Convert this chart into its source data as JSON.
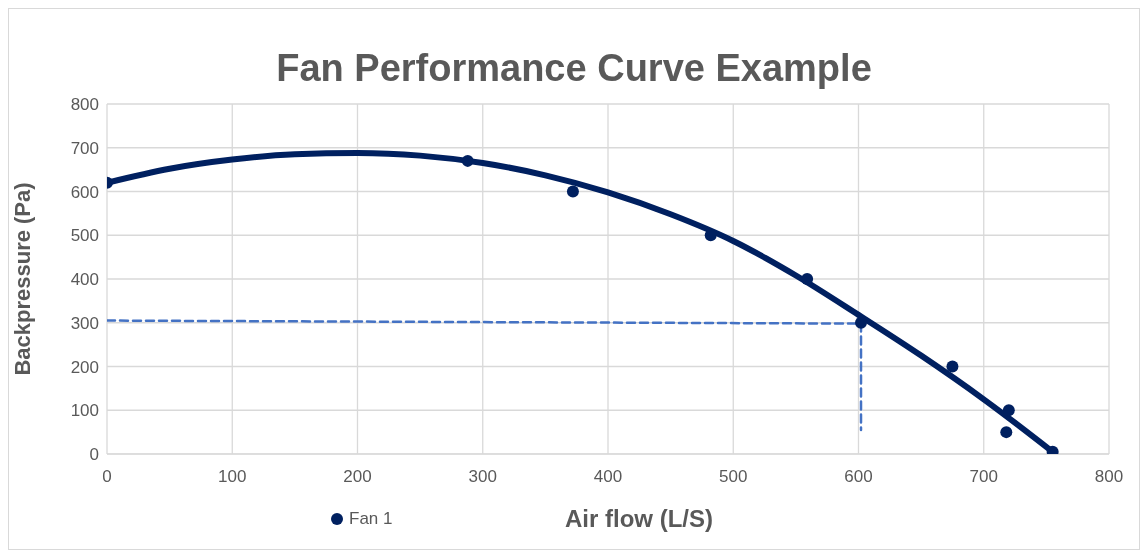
{
  "chart_data": {
    "type": "scatter",
    "title": "Fan Performance Curve Example",
    "xlabel": "Air flow (L/S)",
    "ylabel": "Backpressure (Pa)",
    "xlim": [
      0,
      800
    ],
    "xticks": [
      0,
      100,
      200,
      300,
      400,
      500,
      600,
      700,
      800
    ],
    "ylim": [
      0,
      800
    ],
    "yticks": [
      0,
      100,
      200,
      300,
      400,
      500,
      600,
      700,
      800
    ],
    "grid": true,
    "legend": "bottom",
    "marker": "circle",
    "series": [
      {
        "name": "Fan 1",
        "color": "#002060",
        "x": [
          0,
          288,
          372,
          482,
          559,
          602,
          675,
          720,
          718,
          755
        ],
        "values": [
          620,
          670,
          600,
          500,
          400,
          300,
          200,
          100,
          50,
          5
        ]
      },
      {
        "type": "line",
        "color": "#002060",
        "line_style": "solid",
        "marker": "none",
        "x": [
          0,
          50,
          100,
          150,
          200,
          250,
          300,
          350,
          400,
          450,
          500,
          550,
          600,
          650,
          700,
          755
        ],
        "values": [
          620,
          652,
          673,
          685,
          688,
          682,
          665,
          637,
          598,
          548,
          487,
          408,
          318,
          225,
          125,
          5
        ]
      },
      {
        "type": "line",
        "color": "#4472c4",
        "line_style": "dashed",
        "marker": "none",
        "x": [
          0,
          602,
          602
        ],
        "values": [
          305,
          298,
          55
        ]
      }
    ]
  }
}
